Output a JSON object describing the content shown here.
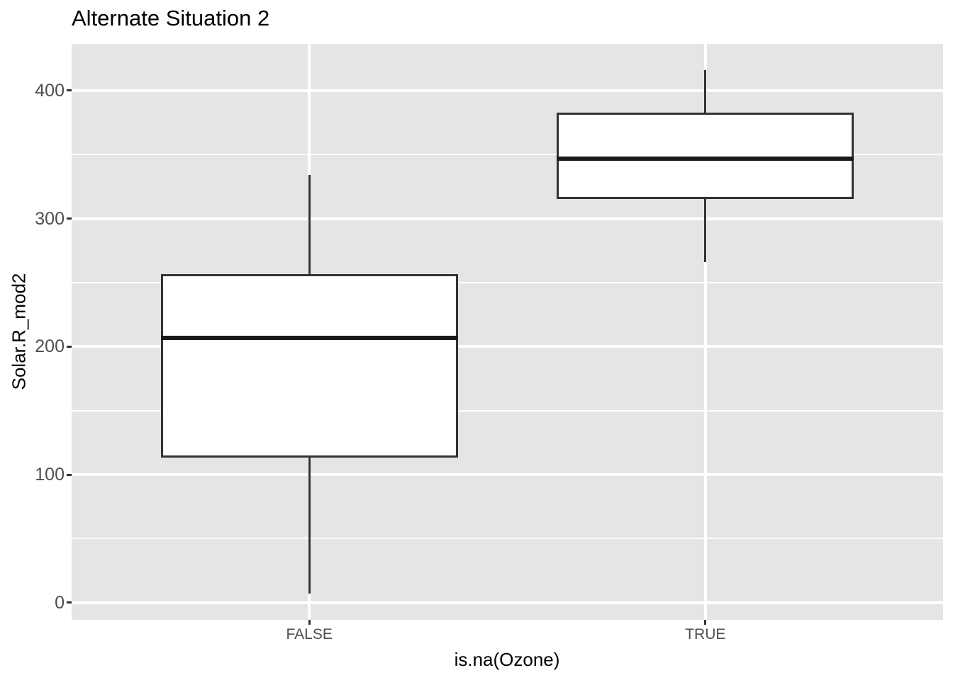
{
  "chart_data": {
    "type": "boxplot",
    "title": "Alternate Situation 2",
    "xlabel": "is.na(Ozone)",
    "ylabel": "Solar.R_mod2",
    "categories": [
      "FALSE",
      "TRUE"
    ],
    "series": [
      {
        "category": "FALSE",
        "min": 7,
        "q1": 114,
        "median": 207,
        "q3": 256,
        "max": 334,
        "outliers": []
      },
      {
        "category": "TRUE",
        "min": 266,
        "q1": 316,
        "median": 347,
        "q3": 382,
        "max": 416,
        "outliers": []
      }
    ],
    "y_major_ticks": [
      {
        "value": 0,
        "label": "0"
      },
      {
        "value": 100,
        "label": "100"
      },
      {
        "value": 200,
        "label": "200"
      },
      {
        "value": 300,
        "label": "300"
      },
      {
        "value": 400,
        "label": "400"
      }
    ],
    "y_minor_ticks": [
      50,
      150,
      250,
      350
    ],
    "ylim": [
      -13.4,
      436.4
    ],
    "grid": true,
    "legend": false
  },
  "colors": {
    "figure_bg": "#FFFFFF",
    "panel_bg": "#E5E5E5",
    "grid": "#FFFFFF",
    "box_stroke": "#333333",
    "box_fill": "#FFFFFF",
    "median": "#1A1A1A",
    "tick_mark": "#333333",
    "tick_label": "#4D4D4D",
    "text": "#000000"
  }
}
